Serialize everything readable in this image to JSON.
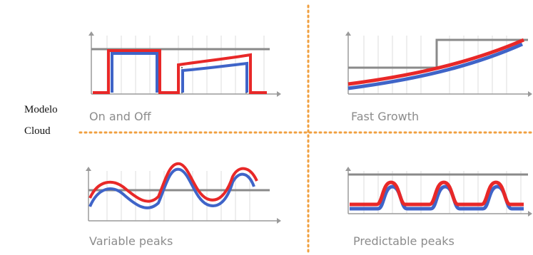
{
  "side_label": {
    "line1": "Modelo",
    "line2": "Cloud"
  },
  "panels": [
    {
      "caption": "On and Off"
    },
    {
      "caption": "Fast Growth"
    },
    {
      "caption": "Variable peaks"
    },
    {
      "caption": "Predictable peaks"
    }
  ],
  "colors": {
    "red_line": "#e82828",
    "blue_line": "#3f64c8",
    "capacity_line": "#8a8a8a",
    "axis": "#9a9a9a",
    "divider": "#f0a040"
  }
}
